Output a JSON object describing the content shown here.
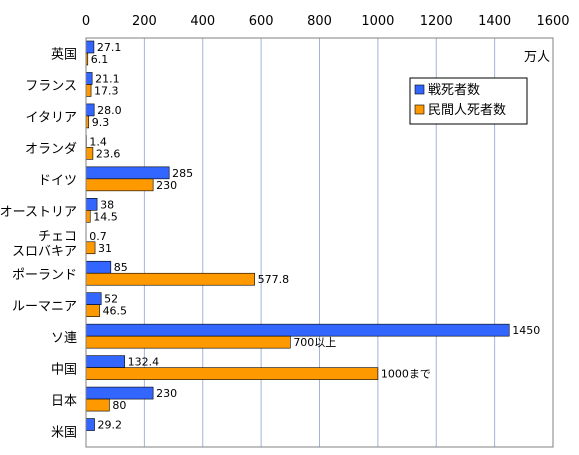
{
  "chart_data": {
    "type": "bar",
    "orientation": "horizontal",
    "unit": "万人",
    "xlim": [
      0,
      1600
    ],
    "x_ticks": [
      "0",
      "200",
      "400",
      "600",
      "800",
      "1000",
      "1200",
      "1400",
      "1600"
    ],
    "grid": true,
    "legend_position": "top-right",
    "categories": [
      [
        "英国"
      ],
      [
        "フランス"
      ],
      [
        "イタリア"
      ],
      [
        "オランダ"
      ],
      [
        "ドイツ"
      ],
      [
        "オーストリア"
      ],
      [
        "チェコ",
        "スロバキア"
      ],
      [
        "ポーランド"
      ],
      [
        "ルーマニア"
      ],
      [
        "ソ連"
      ],
      [
        "中国"
      ],
      [
        "日本"
      ],
      [
        "米国"
      ]
    ],
    "series": [
      {
        "name": "戦死者数",
        "color": "#3366ff",
        "values": [
          27.1,
          21.1,
          28.0,
          1.4,
          285,
          38,
          0.7,
          85,
          52,
          1450,
          132.4,
          230,
          29.2
        ],
        "labels": [
          "27.1",
          "21.1",
          "28.0",
          "1.4",
          "285",
          "38",
          "0.7",
          "85",
          "52",
          "1450",
          "132.4",
          "230",
          "29.2"
        ]
      },
      {
        "name": "民間人死者数",
        "color": "#ff9900",
        "values": [
          6.1,
          17.3,
          9.3,
          23.6,
          230,
          14.5,
          31,
          577.8,
          46.5,
          700,
          1000,
          80,
          null
        ],
        "labels": [
          "6.1",
          "17.3",
          "9.3",
          "23.6",
          "230",
          "14.5",
          "31",
          "577.8",
          "46.5",
          "700以上",
          "1000まで",
          "80",
          ""
        ]
      }
    ]
  }
}
